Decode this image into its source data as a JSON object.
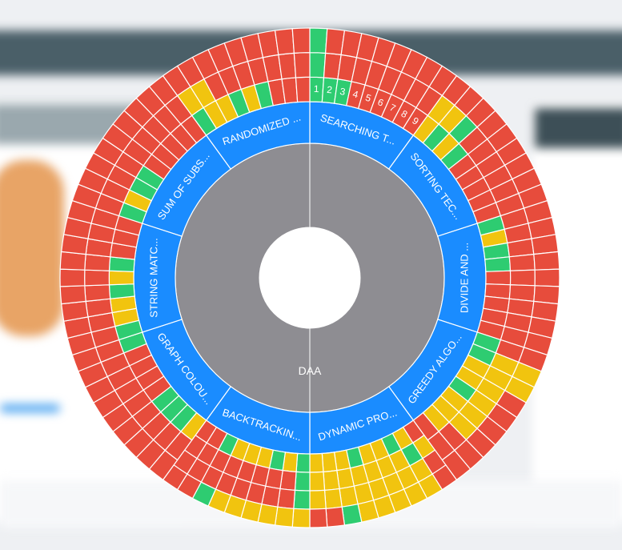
{
  "chart_data": {
    "type": "sunburst",
    "root": "DAA",
    "colors": {
      "G": "#2ecc71",
      "Y": "#f1c40f",
      "R": "#e74c3c",
      "topic": "#1a8cff",
      "root": "#8e8d92"
    },
    "legend": {
      "G": "green",
      "Y": "yellow",
      "R": "red"
    },
    "topics": [
      {
        "name": "SEARCHING T...",
        "labels": [
          "1",
          "2",
          "3",
          "4",
          "5",
          "6",
          "7",
          "8",
          "9"
        ],
        "questions": [
          "GGG",
          "GRR",
          "GRR",
          "RRR",
          "RRR",
          "RRR",
          "RRR",
          "RRR",
          "RRR"
        ]
      },
      {
        "name": "SORTING TEC...",
        "questions": [
          "YYR",
          "GYR",
          "YGR",
          "GRR",
          "RRR",
          "RRR",
          "RRR",
          "RRR",
          "RRR"
        ]
      },
      {
        "name": "DIVIDE AND ...",
        "questions": [
          "GRR",
          "YRR",
          "GRR",
          "GRR",
          "RRR",
          "RRR",
          "RRR",
          "RRR",
          "RRR"
        ]
      },
      {
        "name": "GREEDY ALGO...",
        "questions": [
          "GRR",
          "GYY",
          "YYY",
          "YYR",
          "GYR",
          "YYR",
          "YYR",
          "YRR",
          "RRR"
        ]
      },
      {
        "name": "DYNAMIC PRO...",
        "questions": [
          "RYRR",
          "YGYY",
          "GYYY",
          "YYYY",
          "YYYY",
          "GYYY",
          "YYYG",
          "YYYR",
          "YYYR"
        ]
      },
      {
        "name": "BACKTRACKIN...",
        "questions": [
          "GGGY",
          "YRRY",
          "GRRY",
          "YRRY",
          "YRRY",
          "YRRY",
          "GRRG",
          "RRRR",
          "RRRR"
        ]
      },
      {
        "name": "GRAPH COLOU...",
        "questions": [
          "YRR",
          "GRR",
          "GRR",
          "GRR",
          "RRR",
          "RRR",
          "RRR",
          "RRR",
          "GRR"
        ]
      },
      {
        "name": "STRING MATC...",
        "questions": [
          "GRR",
          "YRR",
          "YRR",
          "GRR",
          "YRR",
          "GRR",
          "RRR",
          "RRR",
          "RRR"
        ]
      },
      {
        "name": "SUM OF SUBS...",
        "questions": [
          "GRR",
          "YRR",
          "GRR",
          "GRR",
          "RRR",
          "RRR",
          "RRR",
          "RRR",
          "RRR"
        ]
      },
      {
        "name": "RANDOMIZED ...",
        "questions": [
          "GYR",
          "YYR",
          "YRR",
          "GRR",
          "YRR",
          "GRR",
          "RRR",
          "RRR",
          "RRR"
        ]
      }
    ]
  }
}
